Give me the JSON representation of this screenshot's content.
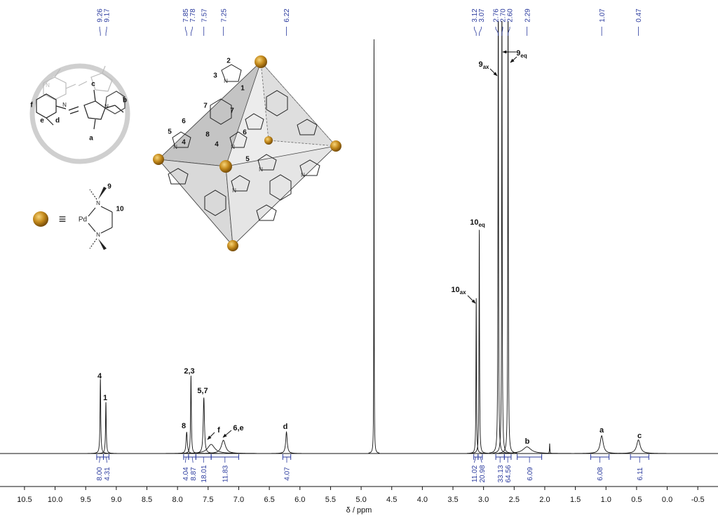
{
  "chart_data": {
    "type": "nmr",
    "x_label": "δ / ppm",
    "xlim": [
      10.9,
      -0.83
    ],
    "xticks": [
      10.5,
      {
        "value": 10,
        "label": "10.0"
      },
      9.5,
      {
        "value": 9,
        "label": "9.0"
      },
      8.5,
      {
        "value": 8,
        "label": "8.0"
      },
      7.5,
      {
        "value": 7,
        "label": "7.0"
      },
      6.5,
      {
        "value": 6,
        "label": "6.0"
      },
      5.5,
      {
        "value": 5,
        "label": "5.0"
      },
      4.5,
      {
        "value": 4,
        "label": "4.0"
      },
      3.5,
      {
        "value": 3,
        "label": "3.0"
      },
      2.5,
      {
        "value": 2,
        "label": "2.0"
      },
      1.5,
      {
        "value": 1,
        "label": "1.0"
      },
      0.5,
      {
        "value": 0,
        "label": "0.0"
      },
      -0.5
    ],
    "ylim": [
      0,
      100
    ],
    "color": "#111111",
    "label_color": "#2b3b9e",
    "peaks": {
      "positions": [
        9.26,
        9.17,
        7.85,
        7.78,
        7.57,
        7.45,
        7.25,
        6.22,
        4.79,
        3.12,
        3.07,
        2.76,
        2.7,
        2.6,
        2.29,
        1.92,
        1.07,
        0.47
      ],
      "heights": [
        18,
        12.4,
        5.2,
        18.8,
        13.5,
        2.2,
        3.2,
        5.2,
        100,
        37.5,
        54,
        115,
        112,
        110,
        1.6,
        2.4,
        4.3,
        3.3
      ],
      "widths": [
        0.007,
        0.007,
        0.012,
        0.007,
        0.012,
        0.07,
        0.04,
        0.015,
        0.003,
        0.005,
        0.005,
        0.005,
        0.005,
        0.005,
        0.08,
        0.004,
        0.03,
        0.035
      ]
    },
    "peak_labels": [
      9.26,
      9.17,
      7.85,
      7.78,
      7.57,
      7.25,
      6.22,
      3.12,
      3.07,
      2.76,
      {
        "value": 2.7,
        "label": "2.70"
      },
      {
        "value": 2.6,
        "label": "2.60"
      },
      2.29,
      1.07,
      0.47
    ],
    "integrals": {
      "ranges": [
        [
          9.32,
          9.21
        ],
        [
          9.21,
          9.12
        ],
        [
          7.9,
          7.82
        ],
        [
          7.82,
          7.7
        ],
        [
          7.7,
          7.45
        ],
        [
          7.45,
          7.0
        ],
        [
          6.28,
          6.15
        ],
        [
          3.16,
          3.09
        ],
        [
          3.09,
          3.02
        ],
        [
          2.8,
          2.66
        ],
        [
          2.66,
          2.55
        ],
        [
          2.45,
          2.05
        ],
        [
          1.25,
          0.95
        ],
        [
          0.6,
          0.3
        ]
      ],
      "values": [
        8,
        4.31,
        4.04,
        8.87,
        18.01,
        11.83,
        4.07,
        11.02,
        20.98,
        33.13,
        64.56,
        6.09,
        6.08,
        6.11
      ],
      "value_labels": [
        "8.00",
        "4.31",
        "4.04",
        "8.87",
        "18.01",
        "11.83",
        "4.07",
        "11.02",
        "20.98",
        "33.13",
        "64.56",
        "6.09",
        "6.08",
        "6.11"
      ]
    },
    "annotations": [
      {
        "text": "4"
      },
      {
        "text": "1"
      },
      {
        "text": "8"
      },
      {
        "text": "2,3"
      },
      {
        "text": "5,7"
      },
      {
        "text": "f"
      },
      {
        "text": "6,e"
      },
      {
        "text": "d"
      },
      {
        "text": "10",
        "sub": "ax"
      },
      {
        "text": "10",
        "sub": "eq"
      },
      {
        "text": "9",
        "sub": "ax"
      },
      {
        "text": "9",
        "sub": "eq"
      },
      {
        "text": "b"
      },
      {
        "text": "a"
      },
      {
        "text": "c"
      }
    ]
  },
  "diagram": {
    "ligand_labels": [
      "c",
      "b",
      "f",
      "e",
      "d",
      "a"
    ],
    "cage_labels": [
      "2",
      "3",
      "1",
      "7",
      "7",
      "6",
      "5",
      "8",
      "4",
      "4",
      "6",
      "5"
    ],
    "atom": "N",
    "symbol": "≡",
    "metal": "Pd",
    "legend_labels": [
      "9",
      "10"
    ]
  }
}
